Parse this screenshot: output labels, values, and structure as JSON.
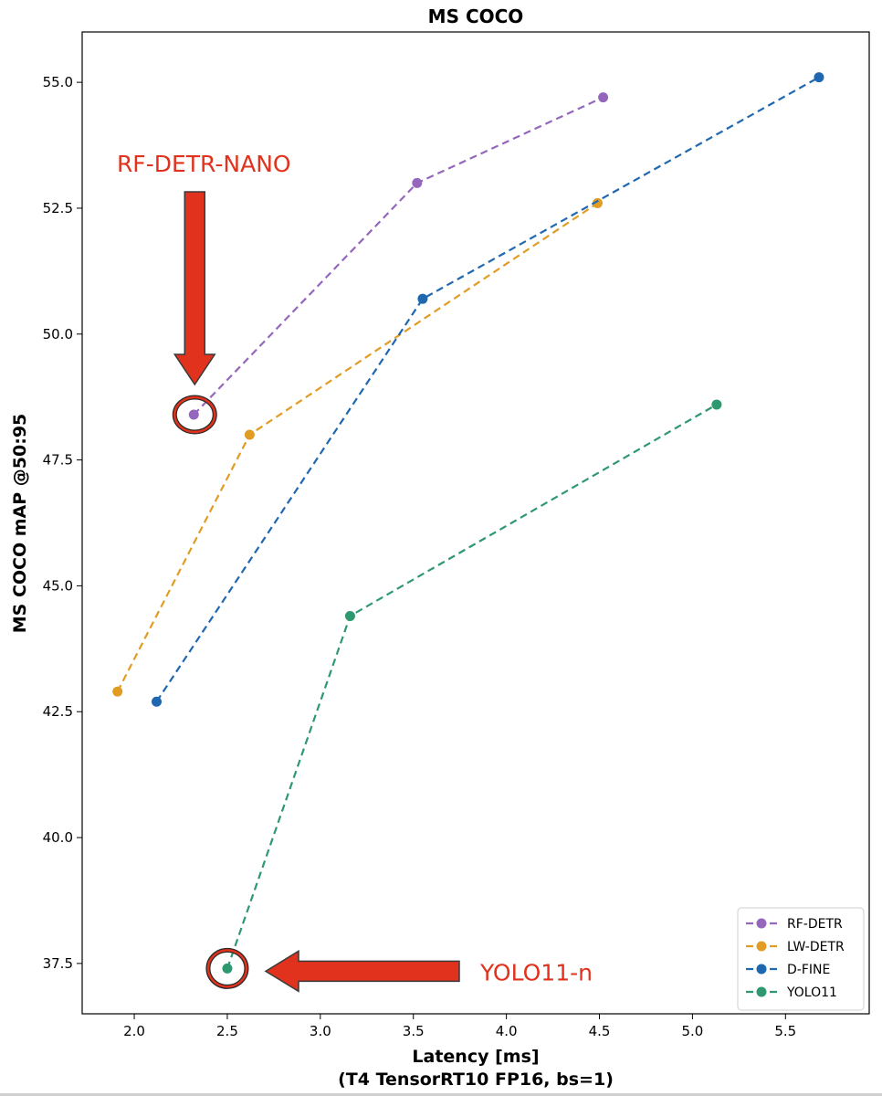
{
  "chart_data": {
    "type": "line",
    "title": "MS COCO",
    "xlabel": "Latency [ms]",
    "xlabel_sub": "(T4 TensorRT10 FP16, bs=1)",
    "ylabel": "MS COCO mAP @50:95",
    "xlim": [
      1.72,
      5.95
    ],
    "ylim": [
      36.5,
      56.0
    ],
    "xticks": [
      "2.0",
      "2.5",
      "3.0",
      "3.5",
      "4.0",
      "4.5",
      "5.0",
      "5.5"
    ],
    "xtick_values": [
      2.0,
      2.5,
      3.0,
      3.5,
      4.0,
      4.5,
      5.0,
      5.5
    ],
    "yticks": [
      "37.5",
      "40.0",
      "42.5",
      "45.0",
      "47.5",
      "50.0",
      "52.5",
      "55.0"
    ],
    "ytick_values": [
      37.5,
      40.0,
      42.5,
      45.0,
      47.5,
      50.0,
      52.5,
      55.0
    ],
    "grid": false,
    "legend_position": "bottom-right",
    "series": [
      {
        "name": "RF-DETR",
        "color": "#9467bd",
        "x": [
          2.32,
          3.52,
          4.52
        ],
        "y": [
          48.4,
          53.0,
          54.7
        ]
      },
      {
        "name": "LW-DETR",
        "color": "#e19c24",
        "x": [
          1.91,
          2.62,
          4.49
        ],
        "y": [
          42.9,
          48.0,
          52.6
        ]
      },
      {
        "name": "D-FINE",
        "color": "#1f68b0",
        "x": [
          2.12,
          3.55,
          5.68
        ],
        "y": [
          42.7,
          50.7,
          55.1
        ]
      },
      {
        "name": "YOLO11",
        "color": "#2e9870",
        "x": [
          2.5,
          3.16,
          5.13
        ],
        "y": [
          37.4,
          44.4,
          48.6
        ]
      }
    ],
    "annotations": [
      {
        "text": "RF-DETR-NANO",
        "color": "#e0321c",
        "target_x": 2.32,
        "target_y": 48.4
      },
      {
        "text": "YOLO11-n",
        "color": "#e0321c",
        "target_x": 2.5,
        "target_y": 37.4
      }
    ]
  }
}
